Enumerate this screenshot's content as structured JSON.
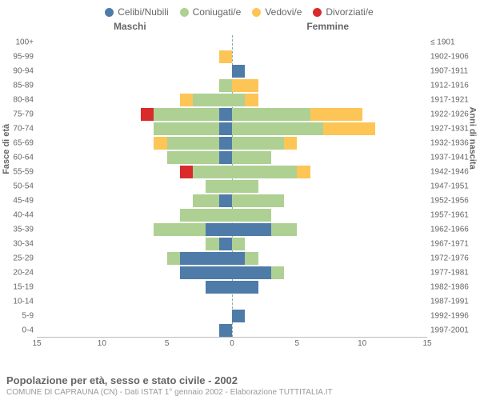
{
  "chart": {
    "type": "population-pyramid",
    "title": "Popolazione per età, sesso e stato civile - 2002",
    "subtitle": "COMUNE DI CAPRAUNA (CN) - Dati ISTAT 1° gennaio 2002 - Elaborazione TUTTITALIA.IT",
    "legend": [
      {
        "label": "Celibi/Nubili",
        "color": "#4f7ba9"
      },
      {
        "label": "Coniugati/e",
        "color": "#aed093"
      },
      {
        "label": "Vedovi/e",
        "color": "#fdc556"
      },
      {
        "label": "Divorziati/e",
        "color": "#d92b2b"
      }
    ],
    "header_male": "Maschi",
    "header_female": "Femmine",
    "yaxis_left_label": "Fasce di età",
    "yaxis_right_label": "Anni di nascita",
    "xlim": 15,
    "xticks": [
      15,
      10,
      5,
      0,
      5,
      10,
      15
    ],
    "background_color": "#ffffff",
    "grid_color": "#bbbbbb",
    "age_bands": [
      {
        "age": "100+",
        "birth": "≤ 1901",
        "m": {
          "single": 0,
          "married": 0,
          "widowed": 0,
          "divorced": 0
        },
        "f": {
          "single": 0,
          "married": 0,
          "widowed": 0,
          "divorced": 0
        }
      },
      {
        "age": "95-99",
        "birth": "1902-1906",
        "m": {
          "single": 0,
          "married": 0,
          "widowed": 1,
          "divorced": 0
        },
        "f": {
          "single": 0,
          "married": 0,
          "widowed": 0,
          "divorced": 0
        }
      },
      {
        "age": "90-94",
        "birth": "1907-1911",
        "m": {
          "single": 0,
          "married": 0,
          "widowed": 0,
          "divorced": 0
        },
        "f": {
          "single": 1,
          "married": 0,
          "widowed": 0,
          "divorced": 0
        }
      },
      {
        "age": "85-89",
        "birth": "1912-1916",
        "m": {
          "single": 0,
          "married": 1,
          "widowed": 0,
          "divorced": 0
        },
        "f": {
          "single": 0,
          "married": 0,
          "widowed": 2,
          "divorced": 0
        }
      },
      {
        "age": "80-84",
        "birth": "1917-1921",
        "m": {
          "single": 0,
          "married": 3,
          "widowed": 1,
          "divorced": 0
        },
        "f": {
          "single": 0,
          "married": 1,
          "widowed": 1,
          "divorced": 0
        }
      },
      {
        "age": "75-79",
        "birth": "1922-1926",
        "m": {
          "single": 1,
          "married": 5,
          "widowed": 0,
          "divorced": 1
        },
        "f": {
          "single": 0,
          "married": 6,
          "widowed": 4,
          "divorced": 0
        }
      },
      {
        "age": "70-74",
        "birth": "1927-1931",
        "m": {
          "single": 1,
          "married": 5,
          "widowed": 0,
          "divorced": 0
        },
        "f": {
          "single": 0,
          "married": 7,
          "widowed": 4,
          "divorced": 0
        }
      },
      {
        "age": "65-69",
        "birth": "1932-1936",
        "m": {
          "single": 1,
          "married": 4,
          "widowed": 1,
          "divorced": 0
        },
        "f": {
          "single": 0,
          "married": 4,
          "widowed": 1,
          "divorced": 0
        }
      },
      {
        "age": "60-64",
        "birth": "1937-1941",
        "m": {
          "single": 1,
          "married": 4,
          "widowed": 0,
          "divorced": 0
        },
        "f": {
          "single": 0,
          "married": 3,
          "widowed": 0,
          "divorced": 0
        }
      },
      {
        "age": "55-59",
        "birth": "1942-1946",
        "m": {
          "single": 0,
          "married": 3,
          "widowed": 0,
          "divorced": 1
        },
        "f": {
          "single": 0,
          "married": 5,
          "widowed": 1,
          "divorced": 0
        }
      },
      {
        "age": "50-54",
        "birth": "1947-1951",
        "m": {
          "single": 0,
          "married": 2,
          "widowed": 0,
          "divorced": 0
        },
        "f": {
          "single": 0,
          "married": 2,
          "widowed": 0,
          "divorced": 0
        }
      },
      {
        "age": "45-49",
        "birth": "1952-1956",
        "m": {
          "single": 1,
          "married": 2,
          "widowed": 0,
          "divorced": 0
        },
        "f": {
          "single": 0,
          "married": 4,
          "widowed": 0,
          "divorced": 0
        }
      },
      {
        "age": "40-44",
        "birth": "1957-1961",
        "m": {
          "single": 0,
          "married": 4,
          "widowed": 0,
          "divorced": 0
        },
        "f": {
          "single": 0,
          "married": 3,
          "widowed": 0,
          "divorced": 0
        }
      },
      {
        "age": "35-39",
        "birth": "1962-1966",
        "m": {
          "single": 2,
          "married": 4,
          "widowed": 0,
          "divorced": 0
        },
        "f": {
          "single": 3,
          "married": 2,
          "widowed": 0,
          "divorced": 0
        }
      },
      {
        "age": "30-34",
        "birth": "1967-1971",
        "m": {
          "single": 1,
          "married": 1,
          "widowed": 0,
          "divorced": 0
        },
        "f": {
          "single": 0,
          "married": 1,
          "widowed": 0,
          "divorced": 0
        }
      },
      {
        "age": "25-29",
        "birth": "1972-1976",
        "m": {
          "single": 4,
          "married": 1,
          "widowed": 0,
          "divorced": 0
        },
        "f": {
          "single": 1,
          "married": 1,
          "widowed": 0,
          "divorced": 0
        }
      },
      {
        "age": "20-24",
        "birth": "1977-1981",
        "m": {
          "single": 4,
          "married": 0,
          "widowed": 0,
          "divorced": 0
        },
        "f": {
          "single": 3,
          "married": 1,
          "widowed": 0,
          "divorced": 0
        }
      },
      {
        "age": "15-19",
        "birth": "1982-1986",
        "m": {
          "single": 2,
          "married": 0,
          "widowed": 0,
          "divorced": 0
        },
        "f": {
          "single": 2,
          "married": 0,
          "widowed": 0,
          "divorced": 0
        }
      },
      {
        "age": "10-14",
        "birth": "1987-1991",
        "m": {
          "single": 0,
          "married": 0,
          "widowed": 0,
          "divorced": 0
        },
        "f": {
          "single": 0,
          "married": 0,
          "widowed": 0,
          "divorced": 0
        }
      },
      {
        "age": "5-9",
        "birth": "1992-1996",
        "m": {
          "single": 0,
          "married": 0,
          "widowed": 0,
          "divorced": 0
        },
        "f": {
          "single": 1,
          "married": 0,
          "widowed": 0,
          "divorced": 0
        }
      },
      {
        "age": "0-4",
        "birth": "1997-2001",
        "m": {
          "single": 1,
          "married": 0,
          "widowed": 0,
          "divorced": 0
        },
        "f": {
          "single": 0,
          "married": 0,
          "widowed": 0,
          "divorced": 0
        }
      }
    ]
  }
}
